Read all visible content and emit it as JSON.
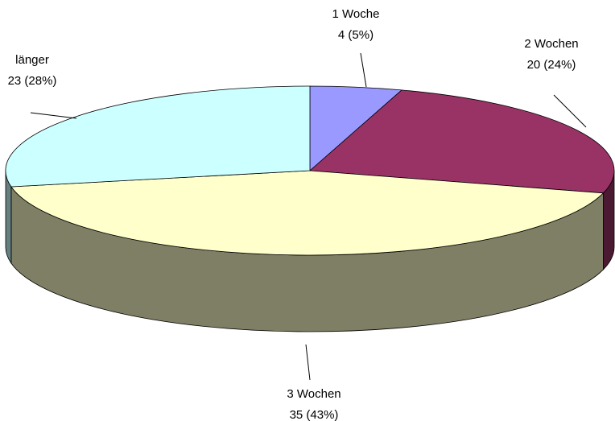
{
  "chart_data": {
    "type": "pie",
    "categories": [
      "1 Woche",
      "2 Wochen",
      "3 Wochen",
      "länger"
    ],
    "values": [
      4,
      20,
      35,
      23
    ],
    "value_labels": [
      "4 (5%)",
      "20 (24%)",
      "35 (43%)",
      "23 (28%)"
    ],
    "colors": [
      "#9999ff",
      "#993366",
      "#ffffcc",
      "#ccffff"
    ]
  }
}
